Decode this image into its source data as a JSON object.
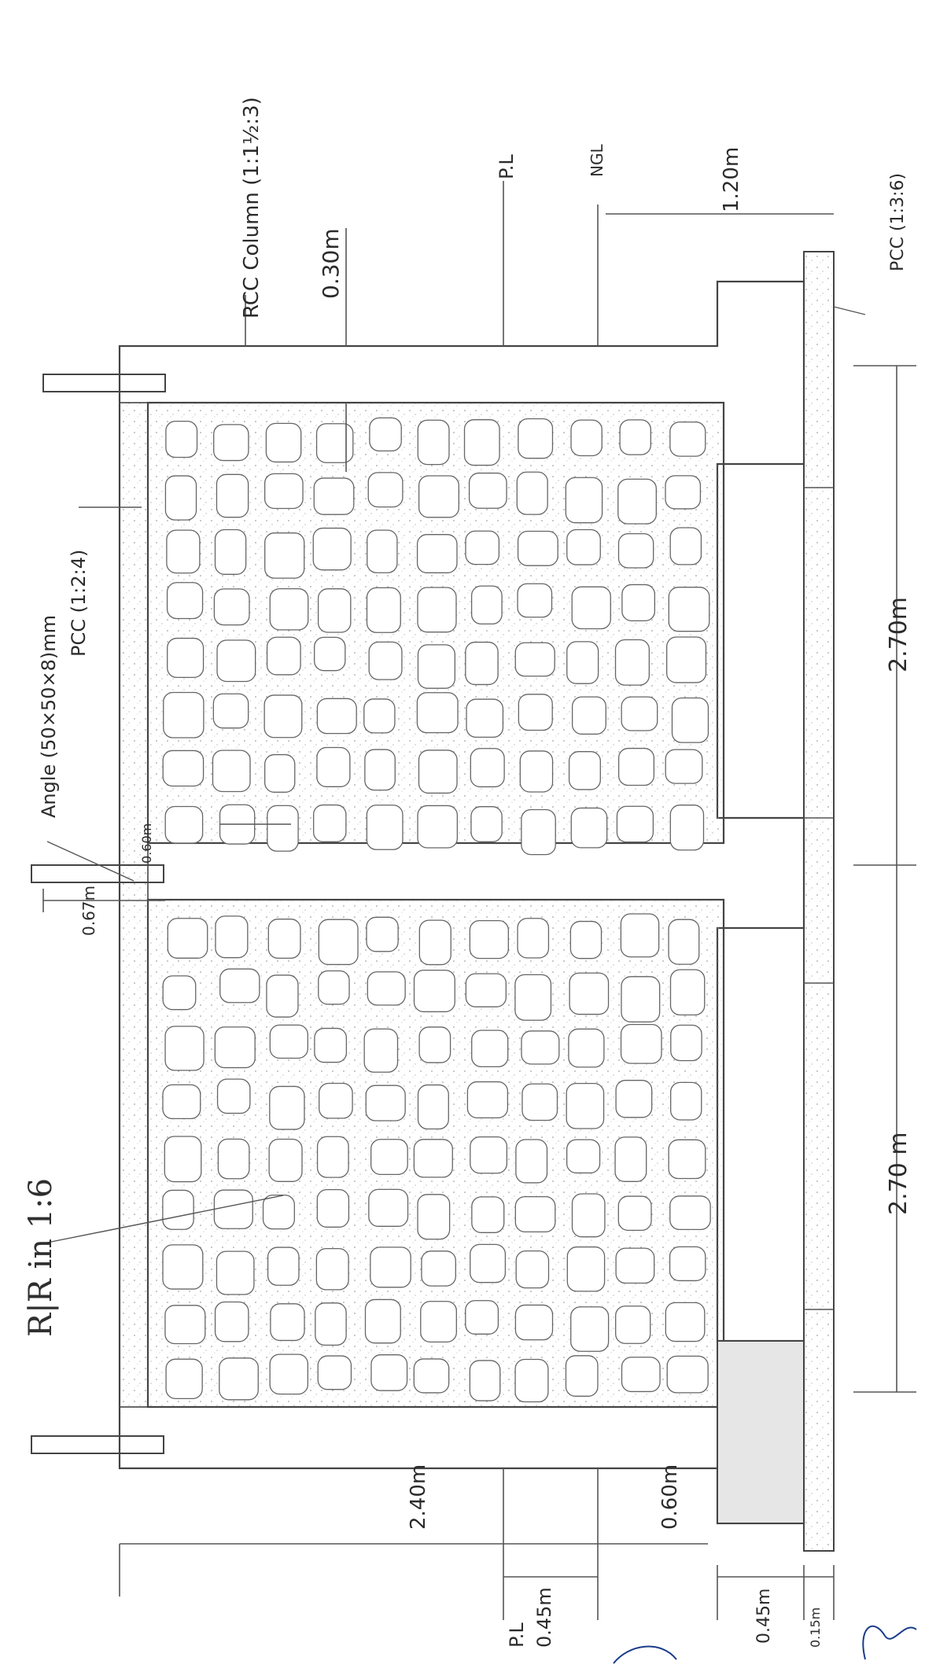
{
  "labels": {
    "rcc_column": "RCC Column (1:1½:3)",
    "pl_top": "P.L",
    "ngl": "NGL",
    "dim_120": "1.20m",
    "pcc_136": "PCC (1:3:6)",
    "dim_030": "0.30m",
    "angle": "Angle (50×50×8)mm",
    "pcc_124": "PCC (1:2:4)",
    "dim_060_top": "0.60m",
    "dim_067": "0.67m",
    "dim_270_a": "2.70m",
    "dim_270_b": "2.70 m",
    "rr": "R|R in 1:6",
    "dim_240": "2.40m",
    "dim_060_bottom": "0.60m",
    "pl_bottom": "P.L",
    "dim_045_left": "0.45m",
    "dim_045_right": "0.45m",
    "dim_015": "0.15m"
  },
  "colors": {
    "line": "#444444",
    "concrete_fill": "#f7f7f7",
    "stone_outline": "#555555"
  }
}
